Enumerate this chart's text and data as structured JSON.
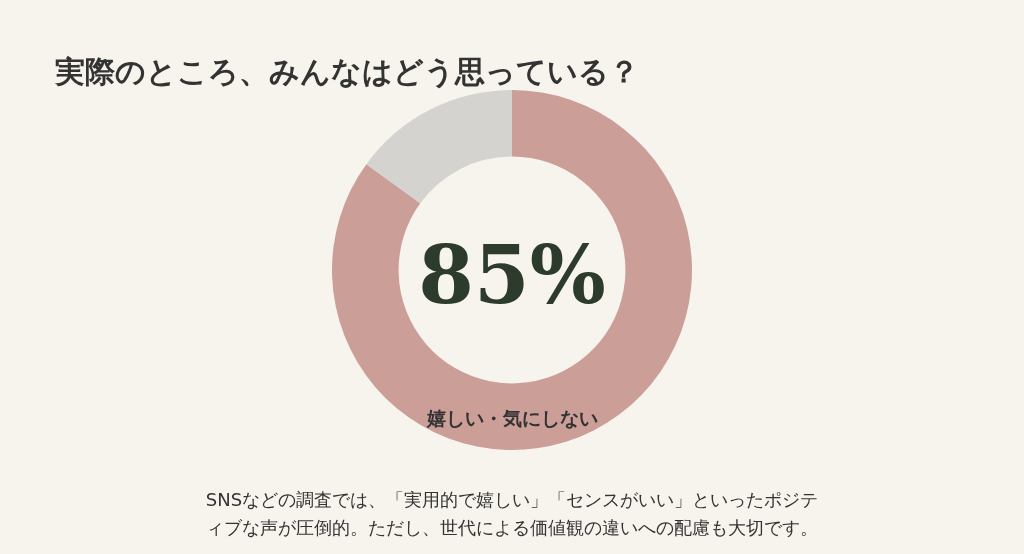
{
  "chart_data": {
    "type": "donut",
    "title": "実際のところ、みんなはどう思っている？",
    "categories": [
      "嬉しい・気にしない",
      null
    ],
    "values": [
      85,
      15
    ],
    "colors": [
      "#cc9e98",
      "#d4d3d0"
    ],
    "value_labels": [
      "85%",
      null
    ],
    "legend": false,
    "annotations": [
      "SNSなどの調査では、「実用的で嬉しい」「センスがいい」といったポジティブな声が圧倒的。ただし、世代による価値観の違いへの配慮も大切です。"
    ]
  }
}
